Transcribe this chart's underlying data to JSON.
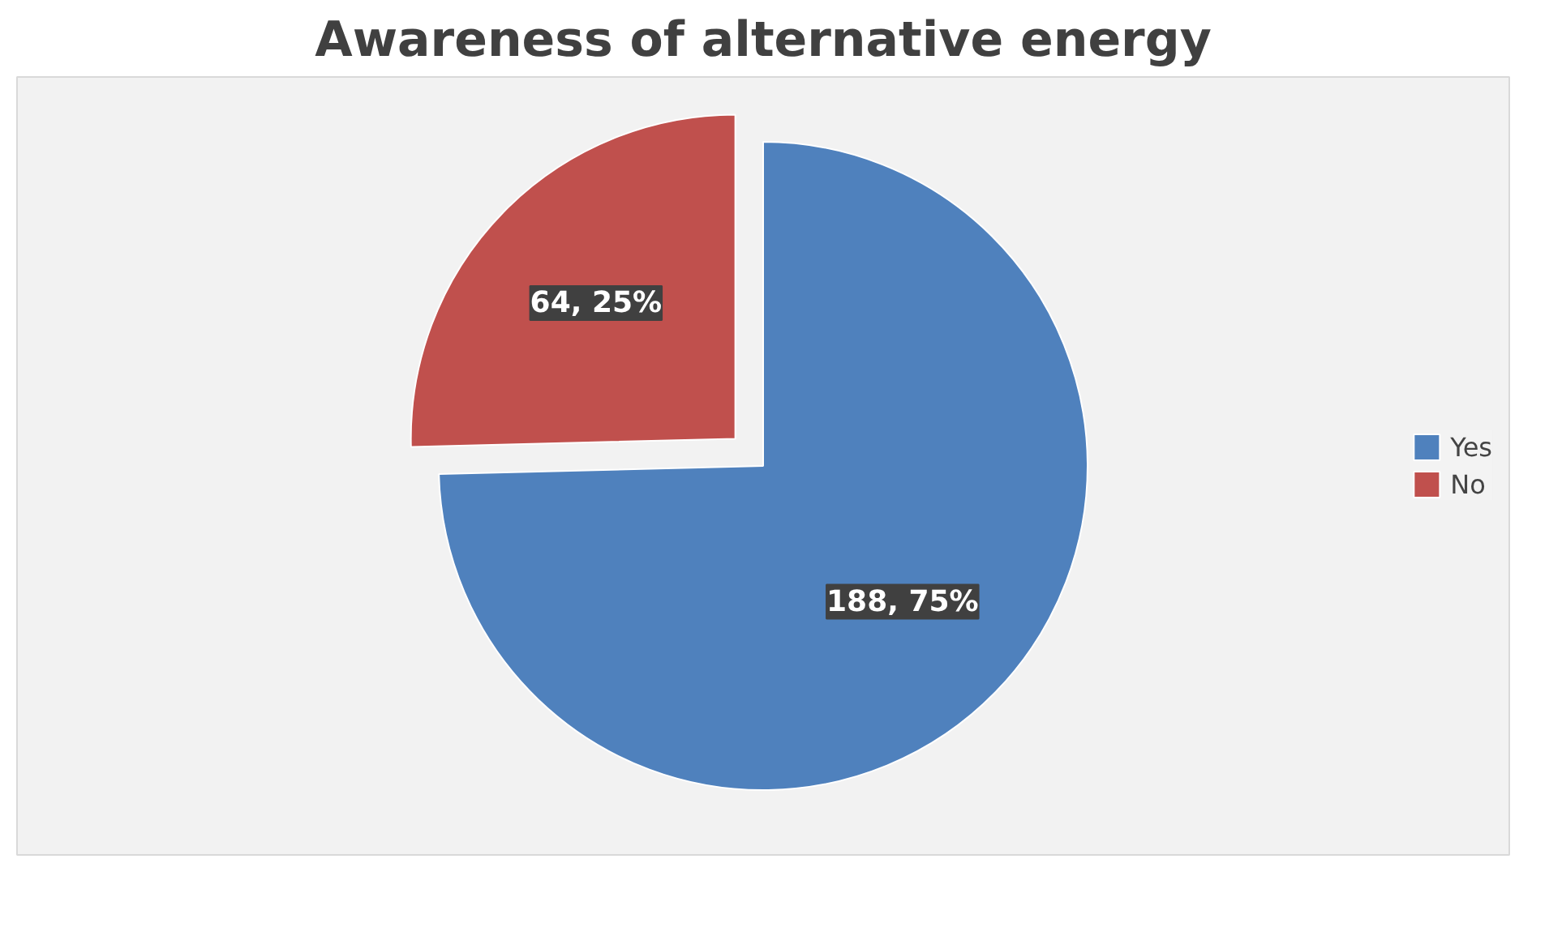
{
  "chart_data": {
    "type": "pie",
    "title": "Awareness of alternative energy",
    "categories": [
      "Yes",
      "No"
    ],
    "values": [
      188,
      64
    ],
    "colors": [
      "#4f81bd",
      "#c0504d"
    ],
    "value_labels": [
      "188, 75%",
      "64, 25%"
    ],
    "legend": "right"
  }
}
